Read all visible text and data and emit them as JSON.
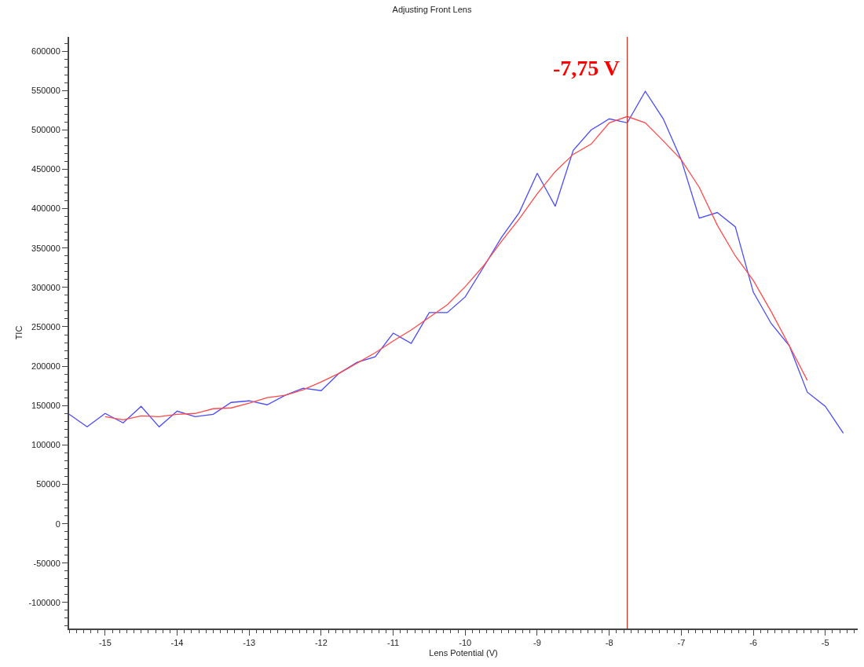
{
  "chart_data": {
    "type": "line",
    "title": "Adjusting Front Lens",
    "xlabel": "Lens Potential (V)",
    "ylabel": "TIC",
    "xlim": [
      -15.5,
      -4.55
    ],
    "ylim": [
      -133000,
      618000
    ],
    "xticks": [
      -15,
      -14,
      -13,
      -12,
      -11,
      -10,
      -9,
      -8,
      -7,
      -6,
      -5
    ],
    "yticks": [
      -100000,
      -50000,
      0,
      50000,
      100000,
      150000,
      200000,
      250000,
      300000,
      350000,
      400000,
      450000,
      500000,
      550000,
      600000
    ],
    "marker": "none",
    "line_style": "solid",
    "series": [
      {
        "color": "#4a4aff",
        "x": [
          -15.5,
          -15.25,
          -15,
          -14.75,
          -14.5,
          -14.25,
          -14,
          -13.75,
          -13.5,
          -13.25,
          -13,
          -12.75,
          -12.5,
          -12.25,
          -12,
          -11.75,
          -11.5,
          -11.25,
          -11,
          -10.75,
          -10.5,
          -10.25,
          -10,
          -9.75,
          -9.5,
          -9.25,
          -9,
          -8.75,
          -8.5,
          -8.25,
          -8,
          -7.75,
          -7.5,
          -7.25,
          -7,
          -6.75,
          -6.5,
          -6.25,
          -6,
          -5.75,
          -5.5,
          -5.25,
          -5,
          -4.75
        ],
        "values": [
          139000,
          123000,
          140000,
          128000,
          149000,
          123000,
          143000,
          136000,
          139000,
          154000,
          156000,
          151000,
          163000,
          172000,
          169000,
          191000,
          205000,
          212000,
          242000,
          229000,
          268000,
          268000,
          288000,
          325000,
          363000,
          395000,
          445000,
          403000,
          474000,
          500000,
          514000,
          509000,
          549000,
          514000,
          462000,
          388000,
          395000,
          377000,
          294000,
          254000,
          226000,
          167000,
          149000,
          115000
        ]
      },
      {
        "color": "#ff4a4a",
        "x": [
          -15,
          -14.75,
          -14.5,
          -14.25,
          -14,
          -13.75,
          -13.5,
          -13.25,
          -13,
          -12.75,
          -12.5,
          -12.25,
          -12,
          -11.75,
          -11.5,
          -11.25,
          -11,
          -10.75,
          -10.5,
          -10.25,
          -10,
          -9.75,
          -9.5,
          -9.25,
          -9,
          -8.75,
          -8.5,
          -8.25,
          -8,
          -7.75,
          -7.5,
          -7.25,
          -7,
          -6.75,
          -6.5,
          -6.25,
          -6,
          -5.75,
          -5.5,
          -5.25
        ],
        "values": [
          136000,
          132000,
          137000,
          136000,
          139000,
          140000,
          146000,
          147000,
          153000,
          160000,
          163000,
          170000,
          180000,
          191000,
          204000,
          217000,
          232000,
          246000,
          262000,
          278000,
          301000,
          327000,
          358000,
          387000,
          419000,
          447000,
          469000,
          482000,
          509000,
          517000,
          509000,
          486000,
          462000,
          427000,
          379000,
          340000,
          309000,
          269000,
          226000,
          182000
        ]
      }
    ],
    "ref_lines": [
      {
        "axis": "x",
        "value": -7.75,
        "color": "#c0392b",
        "line_style": "solid"
      }
    ],
    "annotations": [
      {
        "text": "-7,75 V",
        "x": -7.75,
        "y": 579000
      }
    ]
  }
}
